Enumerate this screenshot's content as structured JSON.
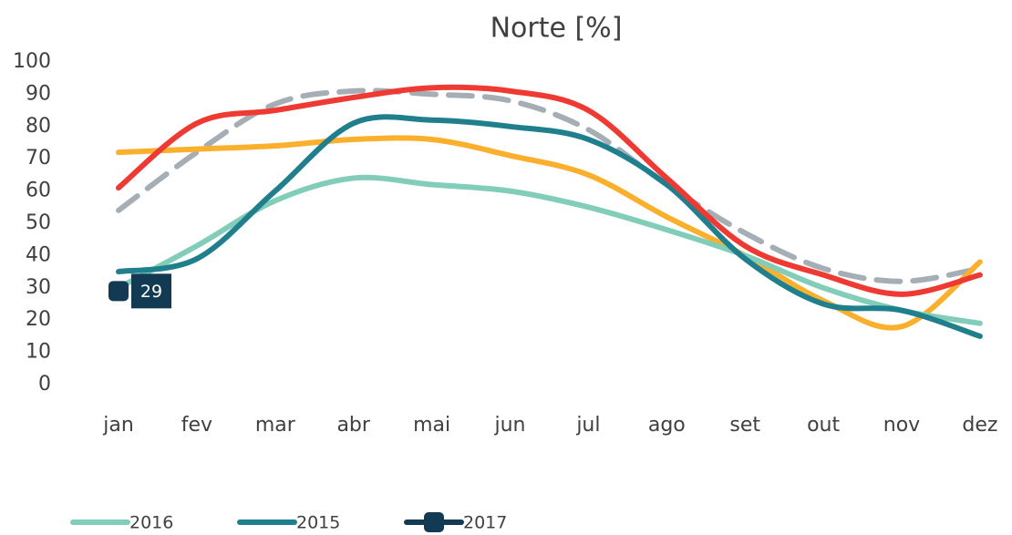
{
  "chart_data": {
    "type": "line",
    "title": "Norte [%]",
    "categories": [
      "jan",
      "fev",
      "mar",
      "abr",
      "mai",
      "jun",
      "jul",
      "ago",
      "set",
      "out",
      "nov",
      "dez"
    ],
    "ylim": [
      0,
      100
    ],
    "yticks": [
      0,
      10,
      20,
      30,
      40,
      50,
      60,
      70,
      80,
      90,
      100
    ],
    "grid": false,
    "legend": "bottom-left",
    "smooth": true,
    "series": [
      {
        "color": "#a5aeb5",
        "dashed": true,
        "values": [
          54,
          72,
          87,
          91,
          90,
          88,
          79,
          62,
          47,
          36,
          32,
          36
        ]
      },
      {
        "color": "#fbb02d",
        "values": [
          72,
          73,
          74,
          76,
          76,
          71,
          65,
          52,
          40,
          26,
          18,
          38
        ]
      },
      {
        "name": "2016",
        "color": "#82cdb9",
        "values": [
          30,
          43,
          57,
          64,
          62,
          60,
          55,
          48,
          40,
          30,
          23,
          19
        ]
      },
      {
        "name": "2015",
        "color": "#1f7f8c",
        "values": [
          35,
          39,
          60,
          81,
          82,
          80,
          76,
          62,
          39,
          25,
          23,
          15
        ]
      },
      {
        "color": "#ee3a33",
        "values": [
          61,
          81,
          85,
          89,
          92,
          91,
          85,
          64,
          43,
          34,
          28,
          34
        ]
      },
      {
        "name": "2017",
        "color": "#123b53",
        "marker": true,
        "values": [
          29,
          null,
          null,
          null,
          null,
          null,
          null,
          null,
          null,
          null,
          null,
          null
        ]
      }
    ]
  }
}
